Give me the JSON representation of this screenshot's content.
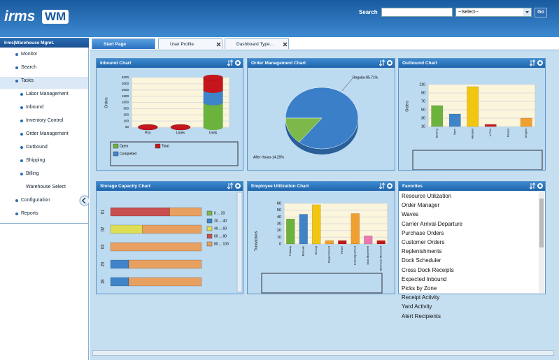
{
  "header": {
    "logo": "irms",
    "logo_badge": "WM",
    "search_label": "Search",
    "select": "--Select--",
    "go": "Go"
  },
  "sidebar": {
    "title": "Irms|Warehouse Mgmt.",
    "menu": [
      "Monitor",
      "Search",
      "Tasks"
    ],
    "task_items": [
      "Labor Management",
      "Inbound",
      "Inventory Control",
      "Order Management",
      "Outbound",
      "Shipping",
      "Billing"
    ],
    "billing_items": [
      "Warehouse Select"
    ],
    "menu_after": [
      "Configuration",
      "Reports"
    ]
  },
  "tabs": [
    "Start Page",
    "User Profile",
    "Dashboard Type..."
  ],
  "panels": [
    {
      "title": "Inbound Chart",
      "chart": {
        "type": "cylinder-stack",
        "y_label": "Orders",
        "categories": [
          "Pcs",
          "Lines",
          "Units"
        ],
        "yticks": [
          50,
          100,
          200,
          500,
          1000,
          1500,
          2000,
          3000,
          4000
        ],
        "series": [
          {
            "name": "Open",
            "color": "#6cb33e",
            "values": [
              0,
              0,
              1000
            ]
          },
          {
            "name": "Completed",
            "color": "#3f84c9",
            "values": [
              0,
              0,
              1000
            ]
          },
          {
            "name": "Total",
            "color": "#c4161c",
            "values": [
              0,
              0,
              2000
            ]
          }
        ]
      }
    },
    {
      "title": "Order Management Chart",
      "chart": {
        "type": "pie",
        "values": [
          85.71,
          14.29
        ],
        "value_labels": [
          "Regular-85.71%",
          "After Hours-14.29%"
        ],
        "colors": [
          "#3a7fc8",
          "#7db84a"
        ]
      }
    },
    {
      "title": "Outbound Chart",
      "chart": {
        "type": "bar",
        "y_label": "Orders",
        "categories": [
          "Booking",
          "Open",
          "Allocated",
          "In Pick",
          "Packed",
          "Shipped"
        ],
        "values": [
          60,
          40,
          105,
          15,
          8,
          30
        ],
        "colors": [
          "#6cb33e",
          "#3f84c9",
          "#f2c511",
          "#c4161c",
          "#c4161c",
          "#f0a030"
        ],
        "ylim": [
          10,
          110
        ],
        "yticks": [
          10,
          30,
          50,
          70,
          90,
          110
        ]
      }
    },
    {
      "title": "Storage Capacity Chart",
      "chart": {
        "type": "hbar-stack",
        "categories": [
          "01",
          "02",
          "03",
          "20",
          "18"
        ],
        "xlim": [
          0,
          100
        ],
        "series": [
          {
            "name": "0 ... 20",
            "color": "#7db84a",
            "values": [
              0,
              0,
              0,
              0,
              0
            ]
          },
          {
            "name": "20 ... 40",
            "color": "#3f84c9",
            "values": [
              0,
              0,
              0,
              20,
              20
            ]
          },
          {
            "name": "40 ... 60",
            "color": "#dede55",
            "values": [
              0,
              35,
              0,
              0,
              0
            ]
          },
          {
            "name": "60 ... 80",
            "color": "#c85050",
            "values": [
              65,
              0,
              0,
              0,
              0
            ]
          },
          {
            "name": "80 ... 100",
            "color": "#e8a060",
            "values": [
              35,
              65,
              100,
              80,
              80
            ]
          }
        ]
      }
    },
    {
      "title": "Employee Utilization Chart",
      "chart": {
        "type": "bar",
        "y_label": "Transactions",
        "categories": [
          "Putaway",
          "Relocate",
          "Receipt",
          "Replenishment",
          "Return",
          "Dock Adjustment",
          "Stock Movement",
          "Warehouse Movement"
        ],
        "values": [
          37,
          44,
          58,
          5,
          5,
          45,
          12,
          5
        ],
        "colors": [
          "#6cb33e",
          "#3f84c9",
          "#f2c511",
          "#f0a030",
          "#c4161c",
          "#f0a030",
          "#e87ab0",
          "#c4161c"
        ],
        "ylim": [
          0,
          60
        ],
        "yticks": [
          0,
          10,
          20,
          30,
          40,
          50,
          60
        ]
      }
    },
    {
      "title": "Favorites",
      "items": [
        "Resource Utilization",
        "Order Manager",
        "Waves",
        "Carrier Arrival-Departure",
        "Purchase Orders",
        "Customer Orders",
        "Replenishments",
        "Dock Scheduler",
        "Cross Dock Receipts",
        "Expected Inbound",
        "Picks by Zone",
        "Receipt Activity",
        "Yard Activity",
        "Alert Recipients"
      ]
    }
  ]
}
